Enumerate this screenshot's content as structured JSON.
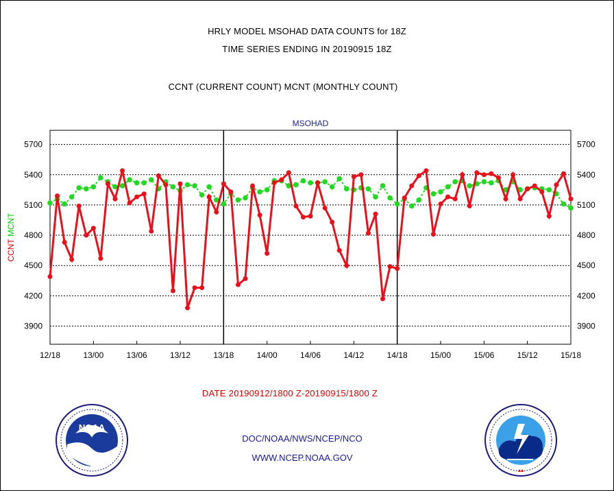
{
  "header": {
    "line1": "HRLY MODEL MSOHAD DATA COUNTS for 18Z",
    "line2": "TIME SERIES ENDING IN 20190915 18Z",
    "line3": "CCNT (CURRENT COUNT) MCNT (MONTHLY COUNT)"
  },
  "footer": {
    "date_range": "DATE 20190912/1800 Z-20190915/1800 Z",
    "org": "DOC/NOAA/NWS/NCEP/NCO",
    "url": "WWW.NCEP.NOAA.GOV"
  },
  "logos": {
    "left": "noaa-logo",
    "right": "national-weather-service-logo"
  },
  "chart_data": {
    "type": "line",
    "title": "MSOHAD",
    "ylabel_parts": [
      "CCNT",
      "MCNT"
    ],
    "ylabel_colors": [
      "#e00000",
      "#00cc00"
    ],
    "ylim": [
      3720,
      5840
    ],
    "yticks": [
      3900,
      4200,
      4500,
      4800,
      5100,
      5400,
      5700
    ],
    "xlim": [
      0,
      72
    ],
    "xticks": [
      {
        "x": 0,
        "label": "12/18"
      },
      {
        "x": 6,
        "label": "13/00"
      },
      {
        "x": 12,
        "label": "13/06"
      },
      {
        "x": 18,
        "label": "13/12"
      },
      {
        "x": 24,
        "label": "13/18"
      },
      {
        "x": 30,
        "label": "14/00"
      },
      {
        "x": 36,
        "label": "14/06"
      },
      {
        "x": 42,
        "label": "14/12"
      },
      {
        "x": 48,
        "label": "14/18"
      },
      {
        "x": 54,
        "label": "15/00"
      },
      {
        "x": 60,
        "label": "15/06"
      },
      {
        "x": 66,
        "label": "15/12"
      },
      {
        "x": 72,
        "label": "15/18"
      }
    ],
    "day_separators": [
      24,
      48
    ],
    "grid": true,
    "series": [
      {
        "name": "CCNT",
        "color": "#e8101a",
        "marker": "circle",
        "values": [
          4390,
          5190,
          4730,
          4560,
          5090,
          4800,
          4870,
          4570,
          5310,
          5160,
          5440,
          5120,
          5180,
          5210,
          4840,
          5390,
          5300,
          4250,
          5310,
          4080,
          4280,
          4280,
          5180,
          5030,
          5310,
          5230,
          4310,
          4370,
          5290,
          5000,
          4620,
          5320,
          5350,
          5420,
          5090,
          4980,
          4990,
          5320,
          5070,
          4930,
          4650,
          4500,
          5380,
          5400,
          4820,
          5010,
          4170,
          4490,
          4470,
          5170,
          5290,
          5390,
          5440,
          4810,
          5110,
          5180,
          5160,
          5400,
          5090,
          5420,
          5400,
          5410,
          5370,
          5160,
          5400,
          5160,
          5260,
          5290,
          5230,
          4990,
          5300,
          5410,
          5160
        ]
      },
      {
        "name": "MCNT",
        "color": "#22d822",
        "marker": "circle",
        "values": [
          5120,
          5160,
          5110,
          5180,
          5270,
          5260,
          5280,
          5370,
          5330,
          5280,
          5290,
          5350,
          5320,
          5320,
          5350,
          5260,
          5330,
          5280,
          5240,
          5300,
          5290,
          5200,
          5280,
          5150,
          5110,
          5210,
          5150,
          5170,
          5270,
          5230,
          5250,
          5340,
          5340,
          5290,
          5300,
          5340,
          5320,
          5320,
          5330,
          5280,
          5360,
          5260,
          5250,
          5270,
          5260,
          5180,
          5290,
          5170,
          5110,
          5160,
          5090,
          5150,
          5270,
          5210,
          5230,
          5280,
          5330,
          5340,
          5290,
          5310,
          5330,
          5320,
          5340,
          5250,
          5330,
          5250,
          5260,
          5270,
          5260,
          5250,
          5210,
          5110,
          5070
        ]
      }
    ]
  }
}
